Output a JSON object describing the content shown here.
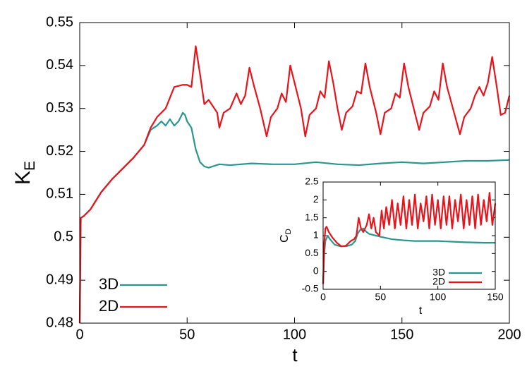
{
  "chart_data": [
    {
      "type": "line",
      "xlabel": "t",
      "ylabel": "K",
      "ylabel_sub": "E",
      "xlim": [
        0,
        200
      ],
      "ylim": [
        0.48,
        0.55
      ],
      "xticks": [
        0,
        50,
        100,
        150,
        200
      ],
      "yticks": [
        0.48,
        0.49,
        0.5,
        0.51,
        0.52,
        0.53,
        0.54,
        0.55
      ],
      "legend": "lower left",
      "series": [
        {
          "name": "3D",
          "color": "#2a9690",
          "x": [
            0,
            0.5,
            2,
            5,
            10,
            15,
            20,
            25,
            30,
            33,
            36,
            38,
            40,
            42,
            44,
            46,
            48,
            49,
            50,
            52,
            54,
            56,
            58,
            60,
            65,
            70,
            80,
            90,
            100,
            110,
            120,
            130,
            140,
            150,
            160,
            170,
            180,
            190,
            200
          ],
          "values": [
            0.48,
            0.5045,
            0.505,
            0.5065,
            0.5105,
            0.5135,
            0.516,
            0.5185,
            0.5215,
            0.525,
            0.526,
            0.527,
            0.526,
            0.5275,
            0.526,
            0.527,
            0.529,
            0.5285,
            0.527,
            0.5255,
            0.5205,
            0.5175,
            0.5165,
            0.5162,
            0.517,
            0.5168,
            0.5172,
            0.517,
            0.517,
            0.5175,
            0.517,
            0.5168,
            0.5172,
            0.5175,
            0.5172,
            0.5175,
            0.5178,
            0.5178,
            0.518
          ]
        },
        {
          "name": "2D",
          "color": "#e8141c",
          "x": [
            0,
            0.5,
            2,
            5,
            10,
            15,
            20,
            25,
            30,
            33,
            36,
            40,
            44,
            48,
            50,
            52,
            54,
            56,
            58,
            60,
            62,
            64,
            65,
            67,
            70,
            73,
            75,
            77,
            79,
            81,
            84,
            87,
            89,
            92,
            94,
            96,
            98,
            100,
            103,
            105,
            107,
            110,
            112,
            114,
            116,
            118,
            120,
            122,
            124,
            127,
            129,
            131,
            133,
            135,
            138,
            140,
            142,
            145,
            147,
            149,
            151,
            153,
            156,
            158,
            160,
            163,
            165,
            167,
            169,
            171,
            174,
            177,
            179,
            182,
            184,
            186,
            188,
            190,
            192,
            194,
            196,
            198,
            200
          ],
          "values": [
            0.48,
            0.5045,
            0.505,
            0.5065,
            0.5105,
            0.5135,
            0.516,
            0.5185,
            0.5215,
            0.5255,
            0.528,
            0.53,
            0.535,
            0.5355,
            0.5355,
            0.535,
            0.5445,
            0.538,
            0.531,
            0.532,
            0.5305,
            0.529,
            0.5255,
            0.529,
            0.53,
            0.5335,
            0.531,
            0.533,
            0.5395,
            0.5355,
            0.53,
            0.5235,
            0.528,
            0.53,
            0.5335,
            0.5315,
            0.54,
            0.536,
            0.53,
            0.5235,
            0.5285,
            0.53,
            0.534,
            0.5325,
            0.541,
            0.536,
            0.53,
            0.525,
            0.529,
            0.5305,
            0.534,
            0.5335,
            0.5405,
            0.535,
            0.529,
            0.524,
            0.529,
            0.53,
            0.5335,
            0.5325,
            0.5405,
            0.535,
            0.529,
            0.525,
            0.529,
            0.5305,
            0.534,
            0.532,
            0.5405,
            0.535,
            0.5295,
            0.524,
            0.528,
            0.53,
            0.533,
            0.535,
            0.533,
            0.536,
            0.542,
            0.5355,
            0.5285,
            0.529,
            0.533
          ]
        }
      ]
    },
    {
      "type": "line",
      "xlabel": "t",
      "ylabel": "C",
      "ylabel_sub": "D",
      "xlim": [
        0,
        150
      ],
      "ylim": [
        -0.5,
        2.5
      ],
      "xticks": [
        0,
        50,
        100,
        150
      ],
      "yticks": [
        -0.5,
        0,
        0.5,
        1,
        1.5,
        2,
        2.5
      ],
      "legend": "lower right",
      "series": [
        {
          "name": "3D",
          "color": "#2a9690",
          "x": [
            0,
            1,
            2,
            4,
            6,
            10,
            15,
            20,
            25,
            28,
            30,
            32,
            35,
            38,
            40,
            50,
            60,
            70,
            80,
            100,
            120,
            140,
            150
          ],
          "values": [
            -0.35,
            0.5,
            0.85,
            1.0,
            0.9,
            0.75,
            0.7,
            0.7,
            0.75,
            0.85,
            1.05,
            1.15,
            1.2,
            1.1,
            1.05,
            0.97,
            0.9,
            0.87,
            0.85,
            0.85,
            0.82,
            0.8,
            0.8
          ]
        },
        {
          "name": "2D",
          "color": "#e8141c",
          "x": [
            0,
            1,
            2,
            3,
            5,
            8,
            12,
            16,
            20,
            24,
            27,
            29,
            31,
            33,
            35,
            38,
            40,
            42,
            44,
            46,
            49,
            51,
            53,
            55,
            57.5,
            60,
            62.5,
            65,
            67.5,
            70,
            72.5,
            75,
            77.5,
            80,
            82.5,
            85,
            87.5,
            90,
            92.5,
            95,
            97.5,
            100,
            102.5,
            105,
            107.5,
            110,
            112.5,
            115,
            117.5,
            120,
            122.5,
            125,
            127.5,
            130,
            132.5,
            135,
            137.5,
            140,
            142.5,
            145,
            147.5,
            150
          ],
          "values": [
            -0.35,
            0.8,
            1.2,
            1.25,
            1.1,
            0.95,
            0.8,
            0.7,
            0.72,
            0.85,
            0.9,
            1.0,
            1.5,
            1.2,
            1.1,
            1.3,
            1.6,
            1.2,
            1.5,
            1.1,
            1.0,
            1.7,
            1.2,
            1.8,
            1.3,
            2.0,
            1.2,
            1.9,
            1.3,
            2.1,
            1.2,
            2.0,
            1.3,
            2.15,
            1.2,
            1.9,
            1.4,
            2.1,
            1.2,
            2.15,
            1.3,
            2.0,
            1.2,
            2.1,
            1.3,
            2.1,
            1.2,
            2.0,
            1.4,
            2.15,
            1.2,
            2.0,
            1.3,
            2.1,
            1.2,
            2.15,
            1.3,
            2.0,
            1.4,
            2.2,
            1.3,
            1.9
          ]
        }
      ]
    }
  ]
}
